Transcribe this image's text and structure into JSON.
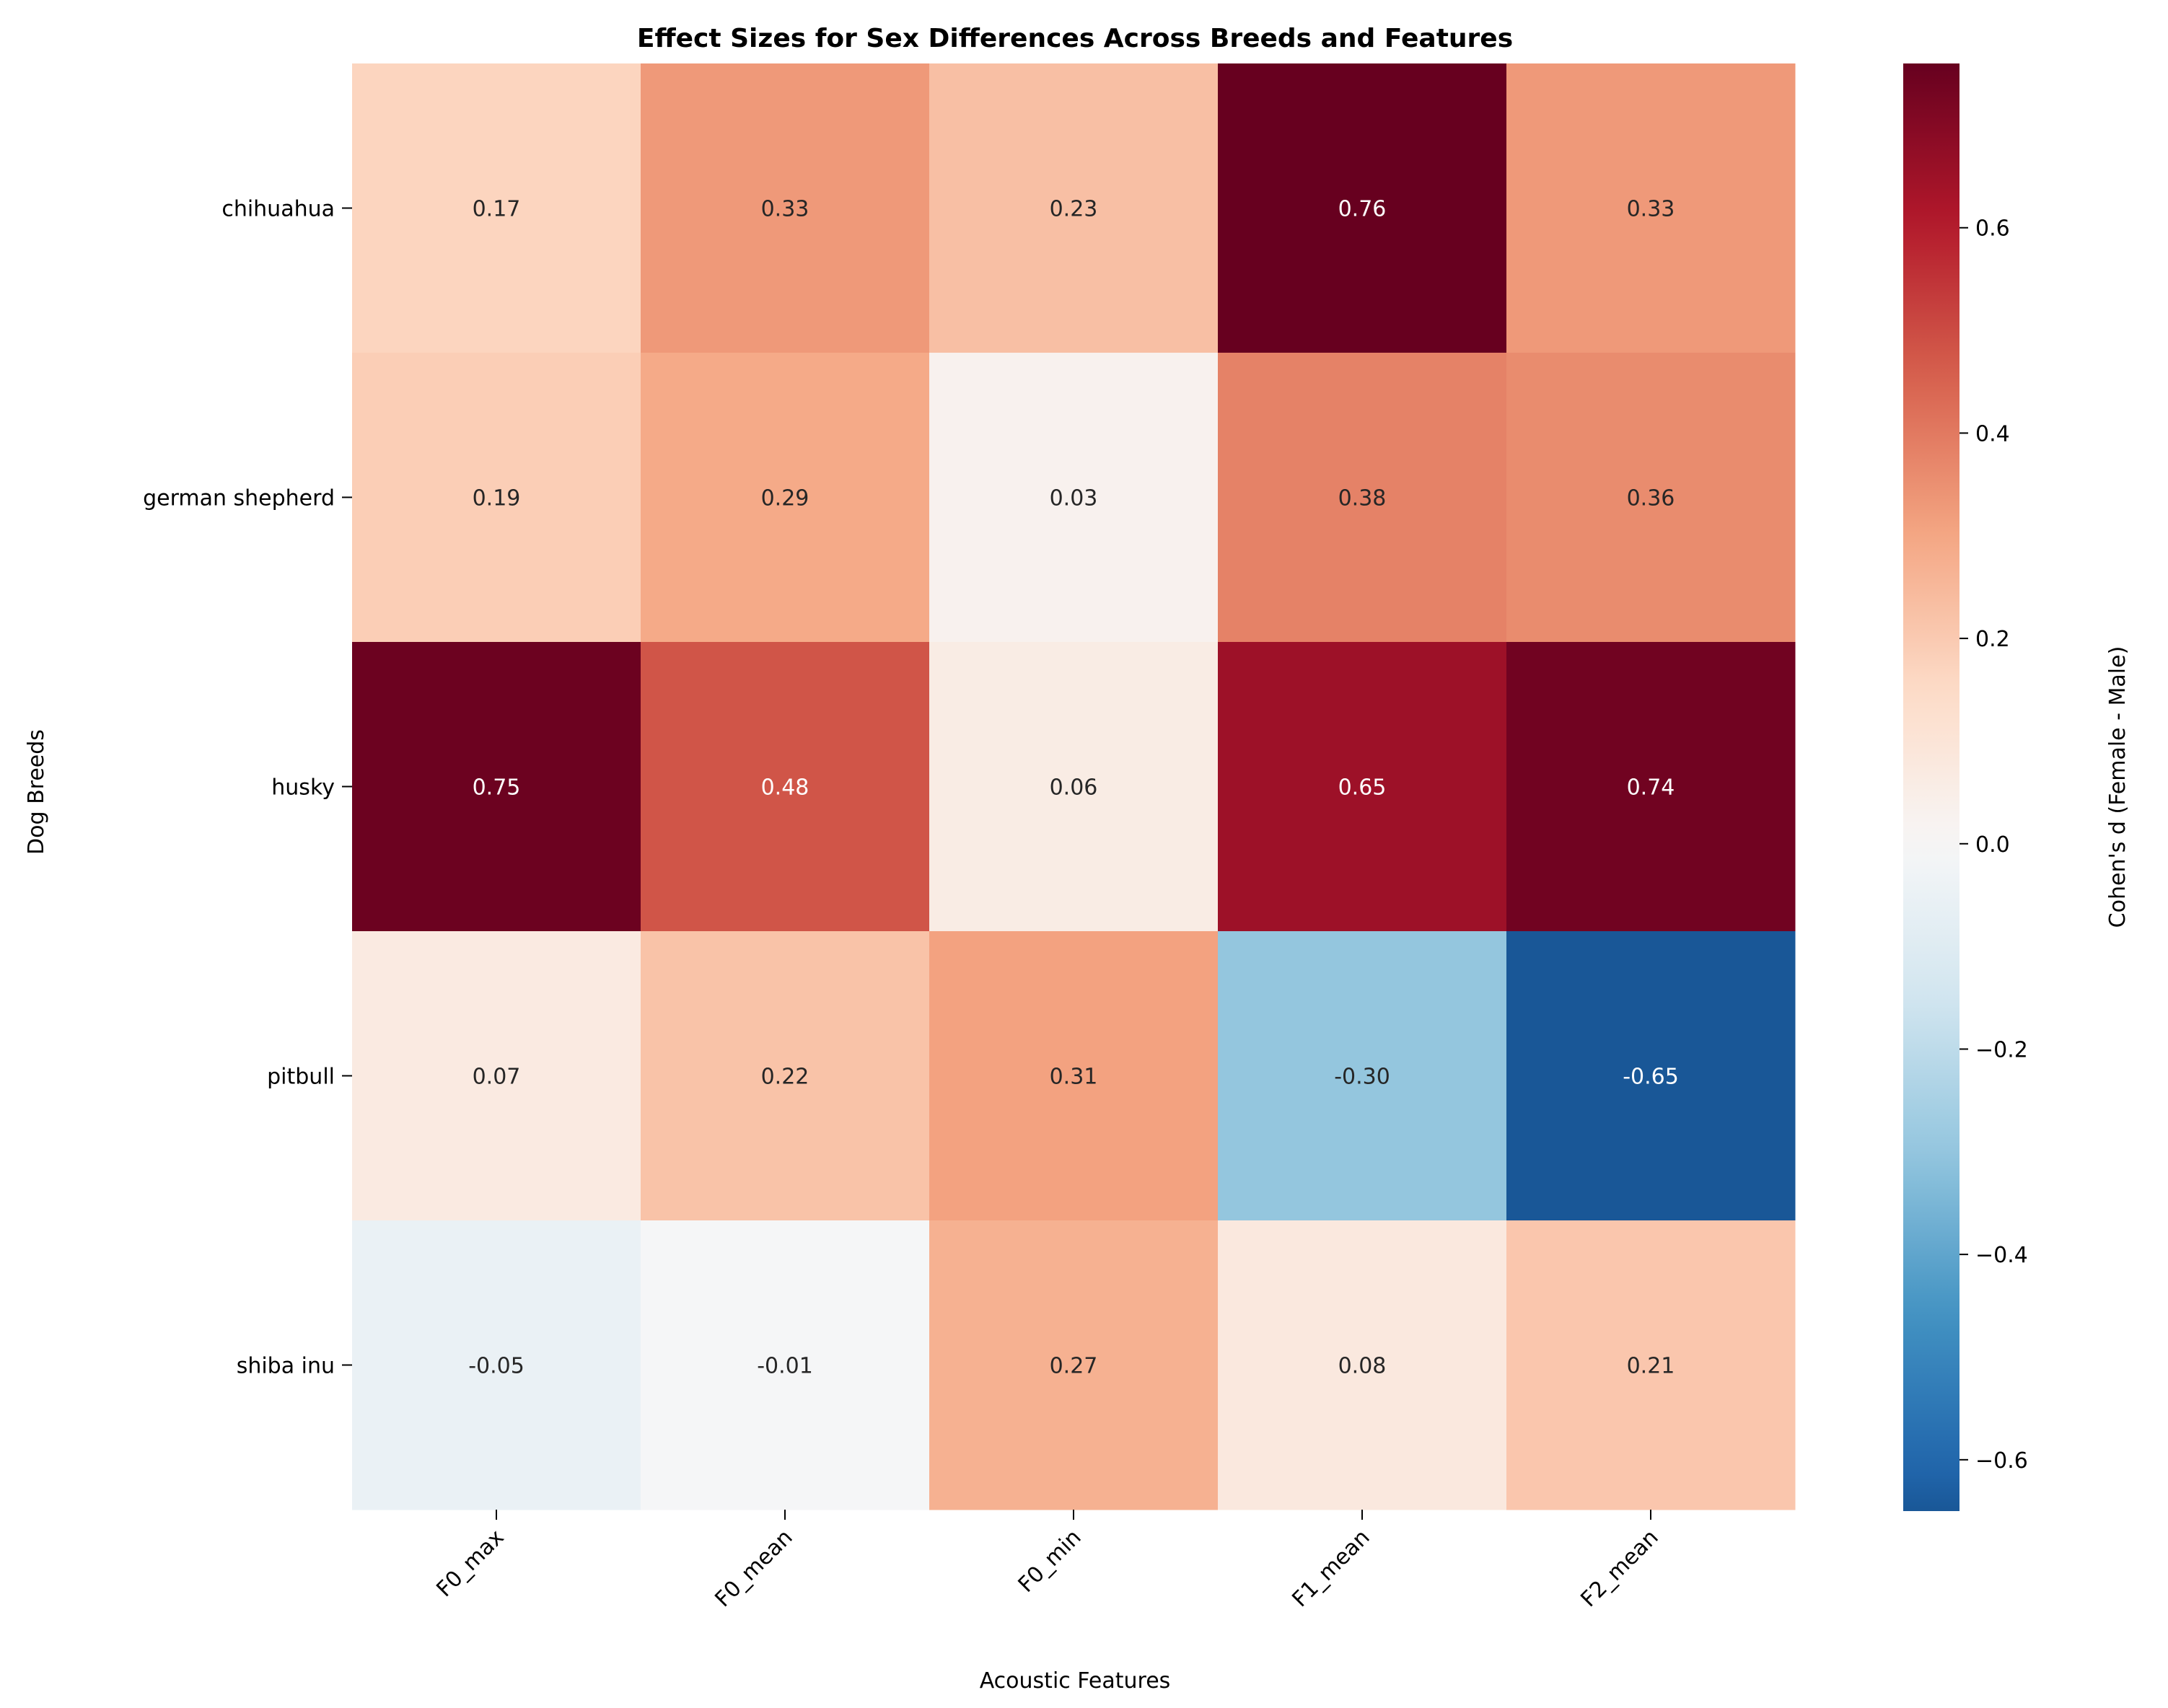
{
  "chart_data": {
    "type": "heatmap",
    "title": "Effect Sizes for Sex Differences Across Breeds and Features",
    "xlabel": "Acoustic Features",
    "ylabel": "Dog Breeds",
    "x_categories": [
      "F0_max",
      "F0_mean",
      "F0_min",
      "F1_mean",
      "F2_mean"
    ],
    "y_categories": [
      "chihuahua",
      "german shepherd",
      "husky",
      "pitbull",
      "shiba inu"
    ],
    "values": [
      [
        0.17,
        0.33,
        0.23,
        0.76,
        0.33
      ],
      [
        0.19,
        0.29,
        0.03,
        0.38,
        0.36
      ],
      [
        0.75,
        0.48,
        0.06,
        0.65,
        0.74
      ],
      [
        0.07,
        0.22,
        0.31,
        -0.3,
        -0.65
      ],
      [
        -0.05,
        -0.01,
        0.27,
        0.08,
        0.21
      ]
    ],
    "value_labels": [
      [
        "0.17",
        "0.33",
        "0.23",
        "0.76",
        "0.33"
      ],
      [
        "0.19",
        "0.29",
        "0.03",
        "0.38",
        "0.36"
      ],
      [
        "0.75",
        "0.48",
        "0.06",
        "0.65",
        "0.74"
      ],
      [
        "0.07",
        "0.22",
        "0.31",
        "-0.30",
        "-0.65"
      ],
      [
        "-0.05",
        "-0.01",
        "0.27",
        "0.08",
        "0.21"
      ]
    ],
    "colorbar": {
      "label": "Cohen's d (Female - Male)",
      "colormap": "RdBu_r",
      "vmin": -0.65,
      "vmax": 0.76,
      "center": 0,
      "ticks": [
        -0.6,
        -0.4,
        -0.2,
        0.0,
        0.2,
        0.4,
        0.6
      ],
      "tick_labels": [
        "−0.6",
        "−0.4",
        "−0.2",
        "0.0",
        "0.2",
        "0.4",
        "0.6"
      ]
    },
    "grid": false,
    "legend": "colorbar-right"
  }
}
